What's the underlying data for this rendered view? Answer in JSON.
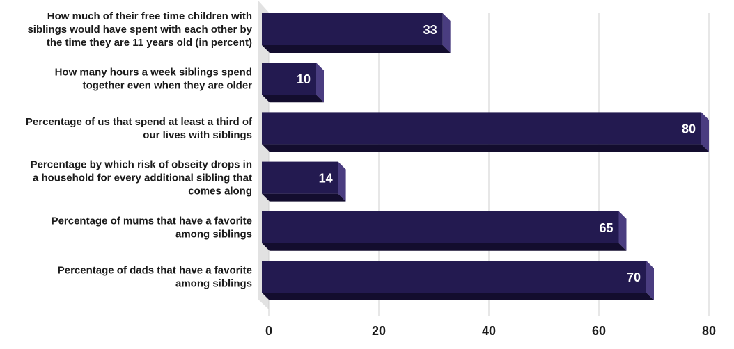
{
  "chart_data": {
    "type": "bar",
    "orientation": "horizontal",
    "title": "",
    "xlabel": "",
    "ylabel": "",
    "xlim": [
      0,
      80
    ],
    "ticks": [
      0,
      20,
      40,
      60,
      80
    ],
    "grid": true,
    "categories": [
      [
        "How much of their free time children with",
        "siblings would have spent with each other by",
        "the time they are 11 years old (in percent)"
      ],
      [
        "How many hours a week siblings spend",
        "together even when they are older"
      ],
      [
        "Percentage of us that spend at least a third of",
        "our lives with siblings"
      ],
      [
        "Percentage by which risk of obseity drops in",
        "a household for every additional sibling that",
        "comes along"
      ],
      [
        "Percentage of mums that have a favorite",
        "among siblings"
      ],
      [
        "Percentage of dads that have a favorite",
        "among siblings"
      ]
    ],
    "values": [
      33,
      10,
      80,
      14,
      65,
      70
    ],
    "colors": {
      "bar_front": "#231a50",
      "bar_bottom": "#130d2e",
      "bar_side": "#4a3d80",
      "floor": "#e2e2e2"
    }
  }
}
